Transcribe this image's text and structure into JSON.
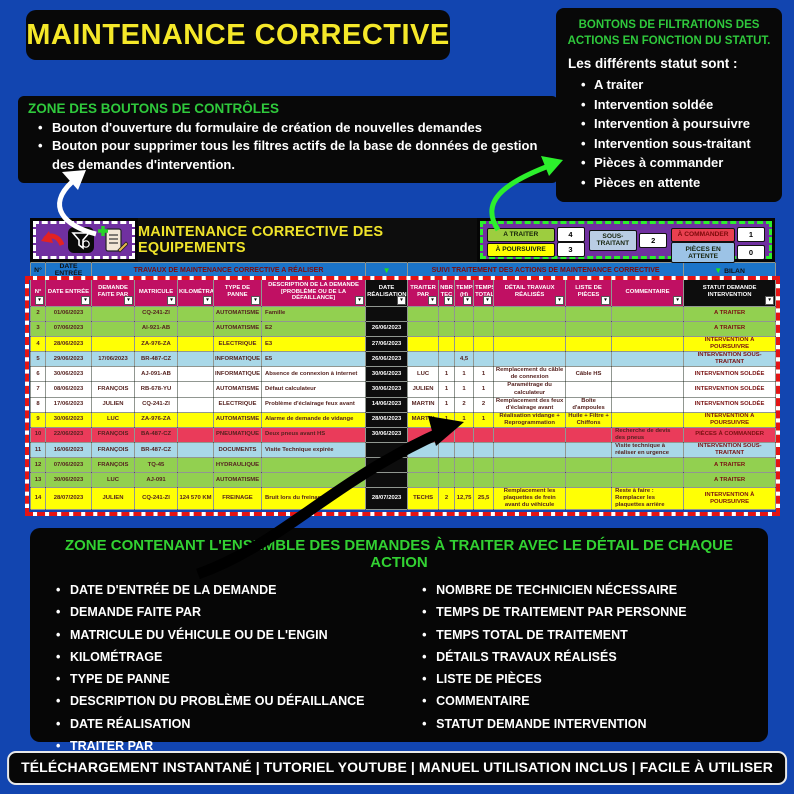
{
  "title": "MAINTENANCE CORRECTIVE",
  "controls_note": {
    "title": "ZONE DES BOUTONS DE CONTRÔLES",
    "bullets": [
      "Bouton d'ouverture du formulaire de création de nouvelles demandes",
      "Bouton pour supprimer tous les filtres actifs de la base de données de gestion des demandes d'intervention."
    ]
  },
  "filters_note": {
    "title": "BONTONS DE FILTRATIONS DES ACTIONS EN FONCTION DU STATUT.",
    "intro": "Les différents statut sont :",
    "items": [
      "A traiter",
      "Intervention soldée",
      "Intervention à poursuivre",
      "Intervention sous-traitant",
      "Pièces à commander",
      "Pièces en attente"
    ]
  },
  "icons": {
    "down_arrow": "▼",
    "dropdown": "▾",
    "plus": "+"
  },
  "sheet": {
    "banner": "MAINTENANCE CORRECTIVE DES EQUIPEMENTS",
    "filter_buttons": [
      {
        "label": "A TRAITER",
        "count": "4",
        "color": "green"
      },
      {
        "label": "À POURSUIVRE",
        "count": "3",
        "color": "yellow"
      },
      {
        "label": "SOUS-TRAITANT",
        "count": "2",
        "color": "grey"
      },
      {
        "label": "À COMMANDER",
        "count": "1",
        "color": "red"
      },
      {
        "label": "PIÈCES EN ATTENTE",
        "count": "0",
        "color": "blue"
      }
    ],
    "header_row1": {
      "no": "N°",
      "date": "DATE ENTRÉE",
      "left": "TRAVAUX DE MAINTENANCE CORRECTIVE A RÉALISER",
      "right": "SUIVI TRAITEMENT DES ACTIONS DE MAINTENANCE CORRECTIVE",
      "bilan": "BILAN"
    },
    "columns": [
      "N°",
      "DATE ENTRÉE",
      "DEMANDE FAITE PAR",
      "MATRICULE",
      "KILOMÉTRAGE",
      "TYPE DE PANNE",
      "DESCRIPTION DE LA DEMANDE [PROBLÈME OU DE LA DÉFAILLANCE]",
      "DATE RÉALISATION",
      "TRAITER PAR",
      "NBR TEC",
      "TEMPS (H)",
      "TEMPS TOTAL",
      "DÉTAIL TRAVAUX RÉALISÉS",
      "LISTE DE PIÈCES",
      "COMMENTAIRE",
      "STATUT DEMANDE INTERVENTION"
    ],
    "rows": [
      {
        "color": "green",
        "cells": [
          "2",
          "01/06/2023",
          "",
          "CQ-241-ZI",
          "",
          "AUTOMATISME",
          "Famille",
          "",
          "",
          "",
          "",
          "",
          "",
          "",
          "",
          "A TRAITER"
        ]
      },
      {
        "color": "green",
        "cells": [
          "3",
          "07/06/2023",
          "",
          "AI-921-AB",
          "",
          "AUTOMATISME",
          "E2",
          "26/06/2023",
          "",
          "",
          "",
          "",
          "",
          "",
          "",
          "A TRAITER"
        ]
      },
      {
        "color": "yellow",
        "cells": [
          "4",
          "28/06/2023",
          "",
          "ZA-976-ZA",
          "",
          "ELECTRIQUE",
          "E3",
          "27/06/2023",
          "",
          "",
          "",
          "",
          "",
          "",
          "",
          "INTERVENTION À POURSUIVRE"
        ]
      },
      {
        "color": "blue",
        "cells": [
          "5",
          "29/06/2023",
          "17/06/2023",
          "BR-487-CZ",
          "",
          "INFORMATIQUE",
          "E5",
          "26/06/2023",
          "",
          "",
          "4,5",
          "",
          "",
          "",
          "",
          "INTERVENTION SOUS-TRAITANT"
        ]
      },
      {
        "color": "white",
        "cells": [
          "6",
          "30/06/2023",
          "",
          "AJ-091-AB",
          "",
          "INFORMATIQUE",
          "Absence de connexion à internet",
          "30/06/2023",
          "LUC",
          "1",
          "1",
          "1",
          "Remplacement du câble de connexion",
          "Câble HS",
          "",
          "INTERVENTION SOLDÉE"
        ]
      },
      {
        "color": "white",
        "cells": [
          "7",
          "08/06/2023",
          "FRANÇOIS",
          "RB-678-YU",
          "",
          "AUTOMATISME",
          "Défaut calculateur",
          "30/06/2023",
          "JULIEN",
          "1",
          "1",
          "1",
          "Paramétrage du calculateur",
          "",
          "",
          "INTERVENTION SOLDÉE"
        ]
      },
      {
        "color": "white",
        "cells": [
          "8",
          "17/06/2023",
          "JULIEN",
          "CQ-241-ZI",
          "",
          "ELECTRIQUE",
          "Problème d'éclairage feux avant",
          "14/06/2023",
          "MARTIN",
          "1",
          "2",
          "2",
          "Remplacement des feux d'éclairage avant",
          "Boîte d'ampoules",
          "",
          "INTERVENTION SOLDÉE"
        ]
      },
      {
        "color": "yellow",
        "cells": [
          "9",
          "30/06/2023",
          "LUC",
          "ZA-976-ZA",
          "",
          "AUTOMATISME",
          "Alarme de demande de vidange",
          "28/06/2023",
          "MARTIN",
          "1",
          "1",
          "1",
          "Réalisation vidange + Reprogrammation",
          "Huile + Filtre + Chiffons",
          "",
          "INTERVENTION À POURSUIVRE"
        ]
      },
      {
        "color": "red",
        "cells": [
          "10",
          "22/06/2023",
          "FRANÇOIS",
          "BA-487-CZ",
          "",
          "PNEUMATIQUE",
          "Deux pneus avant HS",
          "30/06/2023",
          "",
          "",
          "",
          "",
          "",
          "",
          "Recherche de devis des pneus",
          "PIÈCES À COMMANDER"
        ]
      },
      {
        "color": "blue",
        "cells": [
          "11",
          "16/06/2023",
          "FRANÇOIS",
          "BR-487-CZ",
          "",
          "DOCUMENTS",
          "Visite Technique expirée",
          "",
          "",
          "",
          "",
          "",
          "",
          "",
          "Visite technique à réaliser en urgence",
          "INTERVENTION SOUS-TRAITANT"
        ]
      },
      {
        "color": "green",
        "cells": [
          "12",
          "07/06/2023",
          "FRANÇOIS",
          "TQ-45",
          "",
          "HYDRAULIQUE",
          "",
          "",
          "",
          "",
          "",
          "",
          "",
          "",
          "",
          "A TRAITER"
        ]
      },
      {
        "color": "green",
        "cells": [
          "13",
          "30/06/2023",
          "LUC",
          "AJ-091",
          "",
          "AUTOMATISME",
          "",
          "",
          "",
          "",
          "",
          "",
          "",
          "",
          "",
          "A TRAITER"
        ]
      },
      {
        "color": "yellow",
        "cells": [
          "14",
          "28/07/2023",
          "JULIEN",
          "CQ-241-ZI",
          "124 570 KM",
          "FREINAGE",
          "Bruit lors du freinage",
          "28/07/2023",
          "TECHS",
          "2",
          "12,75",
          "25,5",
          "Remplacement les plaquettes de frein avant du véhicule",
          "",
          "Reste à faire : Remplacer les plaquettes arrière",
          "INTERVENTION À POURSUIVRE"
        ]
      }
    ]
  },
  "bottom_zone": {
    "title": "ZONE CONTENANT L'ENSEMBLE DES DEMANDES À TRAITER AVEC LE DÉTAIL DE CHAQUE ACTION",
    "left_bullets": [
      "DATE D'ENTRÉE DE LA DEMANDE",
      "DEMANDE FAITE PAR",
      "MATRICULE DU VÉHICULE OU DE L'ENGIN",
      "KILOMÉTRAGE",
      "TYPE DE PANNE",
      "DESCRIPTION DU PROBLÈME OU DÉFAILLANCE",
      "DATE RÉALISATION",
      "TRAITER PAR"
    ],
    "right_bullets": [
      "NOMBRE DE TECHNICIEN NÉCESSAIRE",
      "TEMPS DE TRAITEMENT PAR PERSONNE",
      "TEMPS TOTAL DE TRAITEMENT",
      "DÉTAILS TRAVAUX RÉALISÉS",
      "LISTE DE PIÈCES",
      "COMMENTAIRE",
      "STATUT DEMANDE INTERVENTION"
    ]
  },
  "footer": "TÉLÉCHARGEMENT INSTANTANÉ | TUTORIEL YOUTUBE | MANUEL UTILISATION INCLUS | FACILE À UTILISER"
}
